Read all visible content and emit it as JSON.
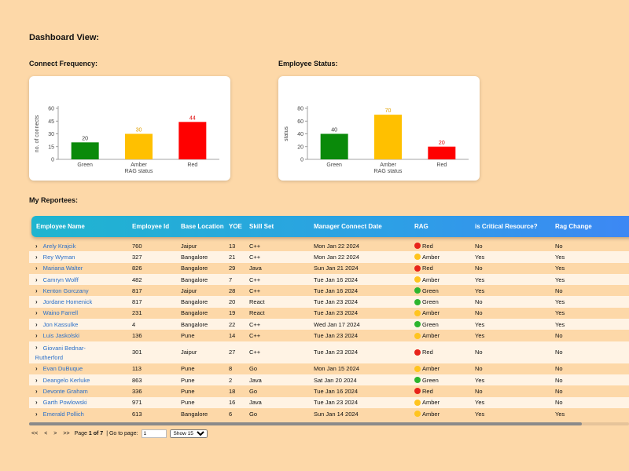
{
  "dashboard": {
    "title": "Dashboard View:"
  },
  "connect_chart": {
    "section_label": "Connect Frequency:",
    "ylabel": "no. of connects",
    "xlabel": "RAG status",
    "y_ticks": [
      "0",
      "15",
      "30",
      "45",
      "60"
    ],
    "ylim": [
      0,
      60
    ],
    "categories": [
      "Green",
      "Amber",
      "Red"
    ],
    "values": [
      20,
      30,
      44
    ],
    "colors": [
      "#0a8a0a",
      "#ffc000",
      "#ff0000"
    ],
    "label_colors": [
      "#333333",
      "#e0a000",
      "#e00000"
    ]
  },
  "status_chart": {
    "section_label": "Employee Status:",
    "ylabel": "status",
    "xlabel": "RAG status",
    "y_ticks": [
      "0",
      "20",
      "40",
      "60",
      "80"
    ],
    "ylim": [
      0,
      80
    ],
    "categories": [
      "Green",
      "Amber",
      "Red"
    ],
    "values": [
      40,
      70,
      20
    ],
    "colors": [
      "#0a8a0a",
      "#ffc000",
      "#ff0000"
    ],
    "label_colors": [
      "#333333",
      "#e0a000",
      "#e00000"
    ]
  },
  "reportees": {
    "section_label": "My Reportees:",
    "columns": [
      "Employee Name",
      "Employee Id",
      "Base Location",
      "YOE",
      "Skill Set",
      "Manager Connect Date",
      "RAG",
      "is Critical Resource?",
      "Rag Change"
    ],
    "rows": [
      {
        "name": "Arely Krajcik",
        "id": "760",
        "loc": "Jaipur",
        "yoe": "13",
        "skill": "C++",
        "date": "Mon Jan 22 2024",
        "rag": "Red",
        "critical": "No",
        "change": "No"
      },
      {
        "name": "Rey Wyman",
        "id": "327",
        "loc": "Bangalore",
        "yoe": "21",
        "skill": "C++",
        "date": "Mon Jan 22 2024",
        "rag": "Amber",
        "critical": "Yes",
        "change": "Yes"
      },
      {
        "name": "Mariana Walter",
        "id": "826",
        "loc": "Bangalore",
        "yoe": "29",
        "skill": "Java",
        "date": "Sun Jan 21 2024",
        "rag": "Red",
        "critical": "No",
        "change": "Yes"
      },
      {
        "name": "Camryn Wolff",
        "id": "482",
        "loc": "Bangalore",
        "yoe": "7",
        "skill": "C++",
        "date": "Tue Jan 16 2024",
        "rag": "Amber",
        "critical": "Yes",
        "change": "Yes"
      },
      {
        "name": "Kenton Gorczany",
        "id": "817",
        "loc": "Jaipur",
        "yoe": "28",
        "skill": "C++",
        "date": "Tue Jan 16 2024",
        "rag": "Green",
        "critical": "Yes",
        "change": "No"
      },
      {
        "name": "Jordane Homenick",
        "id": "817",
        "loc": "Bangalore",
        "yoe": "20",
        "skill": "React",
        "date": "Tue Jan 23 2024",
        "rag": "Green",
        "critical": "No",
        "change": "Yes"
      },
      {
        "name": "Waino Farrell",
        "id": "231",
        "loc": "Bangalore",
        "yoe": "19",
        "skill": "React",
        "date": "Tue Jan 23 2024",
        "rag": "Amber",
        "critical": "No",
        "change": "Yes"
      },
      {
        "name": "Jon Kassulke",
        "id": "4",
        "loc": "Bangalore",
        "yoe": "22",
        "skill": "C++",
        "date": "Wed Jan 17 2024",
        "rag": "Green",
        "critical": "Yes",
        "change": "Yes"
      },
      {
        "name": "Luis Jaskolski",
        "id": "136",
        "loc": "Pune",
        "yoe": "14",
        "skill": "C++",
        "date": "Tue Jan 23 2024",
        "rag": "Amber",
        "critical": "Yes",
        "change": "No"
      },
      {
        "name": "Giovani Bednar-Rutherford",
        "id": "301",
        "loc": "Jaipur",
        "yoe": "27",
        "skill": "C++",
        "date": "Tue Jan 23 2024",
        "rag": "Red",
        "critical": "No",
        "change": "No",
        "wrap": [
          "Giovani Bednar-",
          "Rutherford"
        ]
      },
      {
        "name": "Evan DuBuque",
        "id": "113",
        "loc": "Pune",
        "yoe": "8",
        "skill": "Go",
        "date": "Mon Jan 15 2024",
        "rag": "Amber",
        "critical": "No",
        "change": "No"
      },
      {
        "name": "Deangelo Kerluke",
        "id": "863",
        "loc": "Pune",
        "yoe": "2",
        "skill": "Java",
        "date": "Sat Jan 20 2024",
        "rag": "Green",
        "critical": "Yes",
        "change": "No"
      },
      {
        "name": "Devonte Graham",
        "id": "336",
        "loc": "Pune",
        "yoe": "18",
        "skill": "Go",
        "date": "Tue Jan 16 2024",
        "rag": "Red",
        "critical": "No",
        "change": "No"
      },
      {
        "name": "Garth Powlowski",
        "id": "971",
        "loc": "Pune",
        "yoe": "16",
        "skill": "Java",
        "date": "Tue Jan 23 2024",
        "rag": "Amber",
        "critical": "Yes",
        "change": "No"
      },
      {
        "name": "Emerald Pollich",
        "id": "613",
        "loc": "Bangalore",
        "yoe": "6",
        "skill": "Go",
        "date": "Sun Jan 14 2024",
        "rag": "Amber",
        "critical": "Yes",
        "change": "Yes"
      }
    ],
    "rag_colors": {
      "Red": "#e8231a",
      "Amber": "#ffc41f",
      "Green": "#2db52d"
    }
  },
  "pager": {
    "first": "<<",
    "prev": "<",
    "next": ">",
    "last": ">>",
    "page_prefix": "Page",
    "page_current": "1",
    "page_of": "of 7",
    "goto_label": "| Go to page:",
    "goto_value": "1",
    "show_label": "Show 15"
  }
}
